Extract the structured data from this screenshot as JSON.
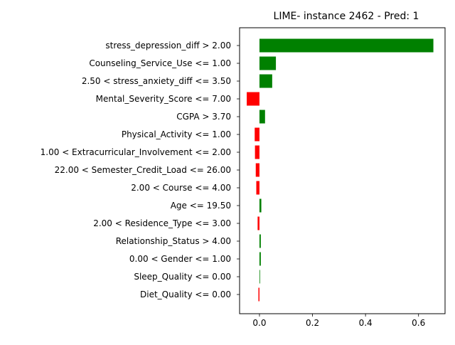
{
  "chart_data": {
    "type": "bar",
    "orientation": "horizontal",
    "title": "LIME- instance 2462 - Pred: 1",
    "xlabel": "",
    "ylabel": "",
    "xlim": [
      -0.075,
      0.7
    ],
    "xticks": [
      0.0,
      0.2,
      0.4,
      0.6
    ],
    "xtick_labels": [
      "0.0",
      "0.2",
      "0.4",
      "0.6"
    ],
    "grid": false,
    "legend": "none",
    "positive_color": "#008000",
    "negative_color": "#ff0000",
    "categories": [
      "stress_depression_diff > 2.00",
      "Counseling_Service_Use <= 1.00",
      "2.50 < stress_anxiety_diff <= 3.50",
      "Mental_Severity_Score <= 7.00",
      "CGPA > 3.70",
      "Physical_Activity <= 1.00",
      "1.00 < Extracurricular_Involvement <= 2.00",
      "22.00 < Semester_Credit_Load <= 26.00",
      "2.00 < Course <= 4.00",
      "Age <= 19.50",
      "2.00 < Residence_Type <= 3.00",
      "Relationship_Status > 4.00",
      "0.00 < Gender <= 1.00",
      "Sleep_Quality <= 0.00",
      "Diet_Quality <= 0.00"
    ],
    "values": [
      0.656,
      0.062,
      0.048,
      -0.048,
      0.021,
      -0.018,
      -0.017,
      -0.014,
      -0.012,
      0.007,
      -0.007,
      0.005,
      0.005,
      0.002,
      -0.004
    ]
  }
}
